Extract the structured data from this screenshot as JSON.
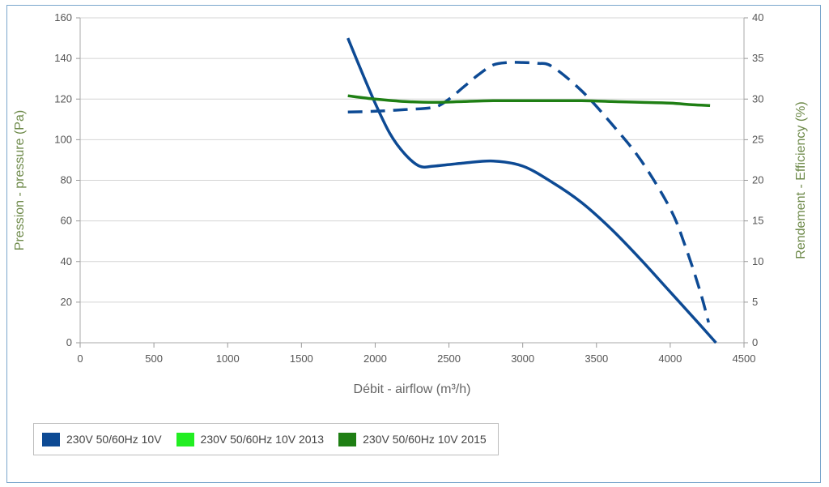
{
  "colors": {
    "series_blue": "#0d4a94",
    "series_dark_green": "#1f7f14",
    "series_light_green": "#22ee22",
    "grid": "#d4d4d4",
    "frame": "#7aa6cc"
  },
  "chart_data": {
    "type": "line",
    "xlabel": "Débit - airflow (m³/h)",
    "ylabel_left": "Pression - pressure (Pa)",
    "ylabel_right": "Rendement - Efficiency (%)",
    "xlim": [
      0,
      4500
    ],
    "ylim_left": [
      0,
      160
    ],
    "ylim_right": [
      0,
      40
    ],
    "x_ticks": [
      "0",
      "500",
      "1000",
      "1500",
      "2000",
      "2500",
      "3000",
      "3500",
      "4000",
      "4500"
    ],
    "y_left_ticks": [
      "0",
      "20",
      "40",
      "60",
      "80",
      "100",
      "120",
      "140",
      "160"
    ],
    "y_right_ticks": [
      "0",
      "5",
      "10",
      "15",
      "20",
      "25",
      "30",
      "35",
      "40"
    ],
    "grid": true,
    "legend_position": "bottom-left",
    "series": [
      {
        "name": "230V 50/60Hz 10V",
        "axis": "left",
        "style": "solid",
        "color": "#0d4a94",
        "x": [
          1815,
          1900,
          2000,
          2100,
          2200,
          2300,
          2400,
          2600,
          2800,
          3000,
          3200,
          3400,
          3600,
          3800,
          4000,
          4200,
          4310
        ],
        "y": [
          150,
          135,
          118,
          103,
          93,
          87,
          87,
          88.5,
          89.5,
          87,
          79,
          69,
          56,
          41,
          25,
          9,
          0
        ]
      },
      {
        "name": "",
        "axis": "right",
        "style": "dashed",
        "color": "#0d4a94",
        "x": [
          1815,
          2000,
          2200,
          2400,
          2500,
          2600,
          2700,
          2800,
          2900,
          3000,
          3100,
          3200,
          3400,
          3600,
          3800,
          4000,
          4100,
          4200,
          4260
        ],
        "y": [
          28.4,
          28.5,
          28.7,
          29,
          30,
          31.5,
          33,
          34.2,
          34.5,
          34.5,
          34.4,
          34,
          31,
          27,
          22.5,
          16.5,
          12,
          6.5,
          2.5
        ]
      },
      {
        "name": "230V 50/60Hz 10V 2015",
        "axis": "right",
        "style": "solid",
        "color": "#1f7f14",
        "x": [
          1815,
          2000,
          2200,
          2400,
          2600,
          2800,
          3000,
          3200,
          3400,
          3600,
          3800,
          4000,
          4150,
          4270
        ],
        "y": [
          30.4,
          30,
          29.7,
          29.6,
          29.7,
          29.8,
          29.8,
          29.8,
          29.8,
          29.7,
          29.6,
          29.5,
          29.3,
          29.2
        ]
      }
    ],
    "legend": [
      {
        "label": "230V 50/60Hz 10V",
        "color": "#0d4a94"
      },
      {
        "label": "230V 50/60Hz 10V 2013",
        "color": "#22ee22"
      },
      {
        "label": "230V 50/60Hz 10V 2015",
        "color": "#1f7f14"
      }
    ]
  }
}
